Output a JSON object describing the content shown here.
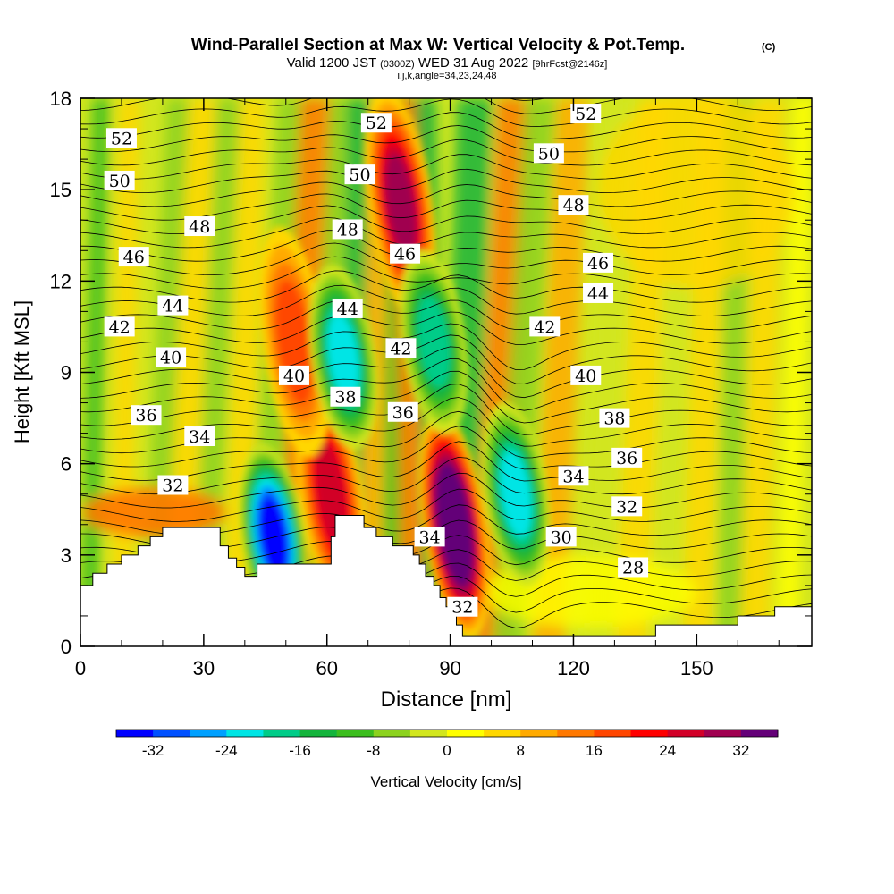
{
  "chart_data": {
    "type": "heatmap",
    "title": "Wind-Parallel Section at Max W: Vertical Velocity & Pot.Temp.",
    "title_mark": "(C)",
    "subtitle_parts": [
      "Valid 1200 JST",
      "(0300Z)",
      "WED 31 Aug 2022",
      "[9hrFcst@2146z]"
    ],
    "subtitle2": "i,j,k,angle=34,23,24,48",
    "xlabel": "Distance [nm]",
    "ylabel": "Height [Kft MSL]",
    "xlim": [
      0,
      178
    ],
    "ylim": [
      0,
      18
    ],
    "x_ticks": [
      0,
      30,
      60,
      90,
      120,
      150
    ],
    "y_ticks": [
      0,
      3,
      6,
      9,
      12,
      15,
      18
    ],
    "colorbar": {
      "label": "Vertical Velocity [cm/s]",
      "ticks": [
        -32,
        -24,
        -16,
        -8,
        0,
        8,
        16,
        24,
        32
      ],
      "colors": [
        "#0000ff",
        "#0050ff",
        "#00a0ff",
        "#00e5e5",
        "#00cc88",
        "#14b43c",
        "#3cbe1e",
        "#8cd21e",
        "#d2e61e",
        "#ffff00",
        "#ffd700",
        "#ffaa00",
        "#ff7800",
        "#ff4600",
        "#ff0000",
        "#d20028",
        "#a00050",
        "#640078"
      ]
    },
    "updraft_cores": [
      {
        "x": 91,
        "z": 4.0,
        "w": 36
      },
      {
        "x": 78,
        "z": 14.5,
        "w": 24
      },
      {
        "x": 61,
        "z": 5.0,
        "w": 22
      },
      {
        "x": 52,
        "z": 10.0,
        "w": 14
      }
    ],
    "downdraft_cores": [
      {
        "x": 47,
        "z": 3.6,
        "w": -34
      },
      {
        "x": 64,
        "z": 9.5,
        "w": -22
      },
      {
        "x": 86,
        "z": 10.0,
        "w": -18
      },
      {
        "x": 106,
        "z": 5.0,
        "w": -20
      }
    ],
    "theta_contour_labels": [
      {
        "text": "52",
        "x": 10,
        "z": 16.7
      },
      {
        "text": "50",
        "x": 9.5,
        "z": 15.3
      },
      {
        "text": "48",
        "x": 29,
        "z": 13.8
      },
      {
        "text": "46",
        "x": 13,
        "z": 12.8
      },
      {
        "text": "44",
        "x": 22.5,
        "z": 11.2
      },
      {
        "text": "42",
        "x": 9.5,
        "z": 10.5
      },
      {
        "text": "40",
        "x": 22,
        "z": 9.5
      },
      {
        "text": "36",
        "x": 16,
        "z": 7.6
      },
      {
        "text": "34",
        "x": 29,
        "z": 6.9
      },
      {
        "text": "32",
        "x": 22.5,
        "z": 5.3
      },
      {
        "text": "52",
        "x": 72,
        "z": 17.2
      },
      {
        "text": "50",
        "x": 68,
        "z": 15.5
      },
      {
        "text": "48",
        "x": 65,
        "z": 13.7
      },
      {
        "text": "46",
        "x": 79,
        "z": 12.9
      },
      {
        "text": "44",
        "x": 65,
        "z": 11.1
      },
      {
        "text": "42",
        "x": 78,
        "z": 9.8
      },
      {
        "text": "40",
        "x": 52,
        "z": 8.9
      },
      {
        "text": "38",
        "x": 64.5,
        "z": 8.2
      },
      {
        "text": "36",
        "x": 78.5,
        "z": 7.7
      },
      {
        "text": "34",
        "x": 85,
        "z": 3.6
      },
      {
        "text": "32",
        "x": 93,
        "z": 1.3
      },
      {
        "text": "52",
        "x": 123,
        "z": 17.5
      },
      {
        "text": "50",
        "x": 114,
        "z": 16.2
      },
      {
        "text": "48",
        "x": 120,
        "z": 14.5
      },
      {
        "text": "46",
        "x": 126,
        "z": 12.6
      },
      {
        "text": "44",
        "x": 126,
        "z": 11.6
      },
      {
        "text": "42",
        "x": 113,
        "z": 10.5
      },
      {
        "text": "40",
        "x": 123,
        "z": 8.9
      },
      {
        "text": "38",
        "x": 130,
        "z": 7.5
      },
      {
        "text": "36",
        "x": 133,
        "z": 6.2
      },
      {
        "text": "34",
        "x": 120,
        "z": 5.6
      },
      {
        "text": "32",
        "x": 133,
        "z": 4.6
      },
      {
        "text": "30",
        "x": 117,
        "z": 3.6
      },
      {
        "text": "28",
        "x": 134.5,
        "z": 2.6
      }
    ],
    "terrain_kft": [
      {
        "x": 0,
        "z": 2.0
      },
      {
        "x": 3,
        "z": 2.4
      },
      {
        "x": 6.5,
        "z": 2.7
      },
      {
        "x": 10,
        "z": 3.0
      },
      {
        "x": 14,
        "z": 3.3
      },
      {
        "x": 17,
        "z": 3.6
      },
      {
        "x": 20,
        "z": 3.9
      },
      {
        "x": 32,
        "z": 3.9
      },
      {
        "x": 34,
        "z": 3.3
      },
      {
        "x": 36,
        "z": 2.9
      },
      {
        "x": 38,
        "z": 2.6
      },
      {
        "x": 40,
        "z": 2.3
      },
      {
        "x": 43,
        "z": 2.7
      },
      {
        "x": 60,
        "z": 2.7
      },
      {
        "x": 61,
        "z": 3.6
      },
      {
        "x": 62,
        "z": 4.3
      },
      {
        "x": 68,
        "z": 4.3
      },
      {
        "x": 69,
        "z": 3.9
      },
      {
        "x": 72,
        "z": 3.6
      },
      {
        "x": 76,
        "z": 3.3
      },
      {
        "x": 81,
        "z": 3.0
      },
      {
        "x": 82.5,
        "z": 2.7
      },
      {
        "x": 84,
        "z": 2.3
      },
      {
        "x": 86,
        "z": 2.0
      },
      {
        "x": 87.5,
        "z": 1.6
      },
      {
        "x": 89,
        "z": 1.3
      },
      {
        "x": 90.5,
        "z": 1.0
      },
      {
        "x": 91.5,
        "z": 0.7
      },
      {
        "x": 93,
        "z": 0.35
      },
      {
        "x": 139,
        "z": 0.35
      },
      {
        "x": 140,
        "z": 0.7
      },
      {
        "x": 150,
        "z": 0.7
      },
      {
        "x": 159,
        "z": 0.7
      },
      {
        "x": 160,
        "z": 1.0
      },
      {
        "x": 168,
        "z": 1.0
      },
      {
        "x": 169,
        "z": 1.3
      },
      {
        "x": 178,
        "z": 1.3
      }
    ]
  }
}
